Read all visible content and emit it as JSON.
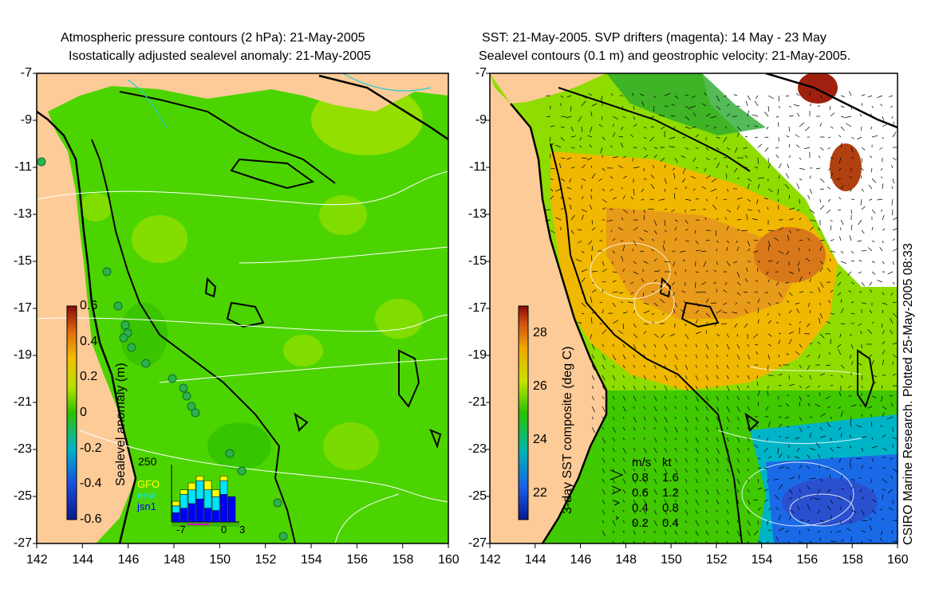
{
  "left_panel": {
    "title_line1": "Atmospheric pressure contours (2 hPa): 21-May-2005",
    "title_line2": "Isostatically adjusted sealevel anomaly: 21-May-2005",
    "colorbar_label": "Sealevel anomaly (m)",
    "colorbar_ticks": [
      "0.6",
      "0.4",
      "0.2",
      "0",
      "-0.2",
      "-0.4",
      "-0.6"
    ],
    "colorbar_range": [
      -0.6,
      0.6
    ],
    "inset": {
      "ymax_label": "250",
      "x_ticks": [
        "-7",
        "0",
        "3"
      ],
      "legend": [
        {
          "name": "GFO",
          "color": "#ffff00"
        },
        {
          "name": "envi",
          "color": "#00e5ff"
        },
        {
          "name": "jsn1",
          "color": "#0000ff"
        }
      ],
      "bars": [
        {
          "jsn1": 40,
          "envi": 30,
          "GFO": 20
        },
        {
          "jsn1": 60,
          "envi": 60,
          "GFO": 20
        },
        {
          "jsn1": 80,
          "envi": 60,
          "GFO": 30
        },
        {
          "jsn1": 100,
          "envi": 80,
          "GFO": 20
        },
        {
          "jsn1": 60,
          "envi": 80,
          "GFO": 40
        },
        {
          "jsn1": 50,
          "envi": 60,
          "GFO": 30
        },
        {
          "jsn1": 120,
          "envi": 60,
          "GFO": 20
        },
        {
          "jsn1": 110,
          "envi": 0,
          "GFO": 0
        }
      ]
    }
  },
  "right_panel": {
    "title_line1": "SST: 21-May-2005. SVP drifters (magenta): 14 May - 23 May",
    "title_line2": "Sealevel contours (0.1 m) and geostrophic velocity: 21-May-2005.",
    "colorbar_label": "3-day SST composite (deg C)",
    "colorbar_ticks": [
      "28",
      "26",
      "24",
      "22"
    ],
    "colorbar_range": [
      21,
      29
    ],
    "velocity_key": {
      "header_ms": "m/s",
      "header_kt": "kt",
      "rows": [
        {
          "ms": "0.8",
          "kt": "1.6"
        },
        {
          "ms": "0.6",
          "kt": "1.2"
        },
        {
          "ms": "0.4",
          "kt": "0.8"
        },
        {
          "ms": "0.2",
          "kt": "0.4"
        }
      ]
    }
  },
  "axes": {
    "lon_ticks": [
      "142",
      "144",
      "146",
      "148",
      "150",
      "152",
      "154",
      "156",
      "158",
      "160"
    ],
    "lat_ticks": [
      "-7",
      "-9",
      "-11",
      "-13",
      "-15",
      "-17",
      "-19",
      "-21",
      "-23",
      "-25",
      "-27"
    ]
  },
  "credit": "CSIRO Marine Research. Plotted 25-May-2005 08:33",
  "colors": {
    "land": "#fccb98",
    "sla_ocean": "#4cd400",
    "coast": "#000000",
    "contour": "#ffffff",
    "tide_gauge": "#2ab34a",
    "sst_warm": "#e89a1a"
  }
}
